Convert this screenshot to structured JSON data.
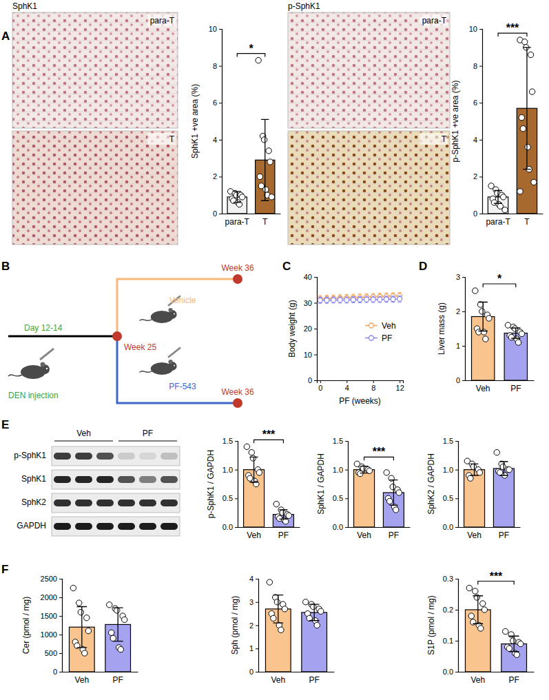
{
  "chart_data": [
    {
      "type": "bar",
      "ylabel": "SphK1 +ve area (%)",
      "categories": [
        "para-T",
        "T"
      ],
      "values": [
        0.9,
        2.9
      ],
      "errors": [
        0.3,
        2.2
      ],
      "points": [
        [
          1.2,
          1.1,
          1.0,
          1.0,
          0.9,
          0.8,
          0.7,
          0.6,
          0.5
        ],
        [
          8.3,
          4.2,
          4.0,
          3.4,
          2.8,
          2.0,
          1.5,
          1.3,
          1.0,
          0.9
        ]
      ],
      "colors": [
        "#f2f2f2",
        "#a8692f"
      ],
      "ylim": [
        0,
        10
      ],
      "yticks": [
        0,
        2,
        4,
        6,
        8,
        10
      ],
      "significance": "*"
    },
    {
      "type": "bar",
      "ylabel": "p-SphK1 +ve area (%)",
      "categories": [
        "para-T",
        "T"
      ],
      "values": [
        0.9,
        5.7
      ],
      "errors": [
        0.35,
        3.3
      ],
      "points": [
        [
          1.5,
          1.3,
          1.1,
          1.0,
          0.9,
          0.8,
          0.6,
          0.5,
          0.4,
          0.2
        ],
        [
          9.4,
          9.3,
          9.0,
          8.6,
          6.6,
          5.2,
          4.6,
          3.6,
          2.4,
          1.7,
          1.2
        ]
      ],
      "colors": [
        "#f2f2f2",
        "#a8692f"
      ],
      "ylim": [
        0,
        10
      ],
      "yticks": [
        0,
        2,
        4,
        6,
        8,
        10
      ],
      "significance": "***"
    },
    {
      "type": "line",
      "xlabel": "PF (weeks)",
      "ylabel": "Body weight (g)",
      "x": [
        0,
        1,
        2,
        3,
        4,
        5,
        6,
        7,
        8,
        9,
        10,
        11,
        12
      ],
      "series": [
        {
          "name": "Veh",
          "color": "#f3a35a",
          "marker": "circle",
          "values": [
            31.5,
            31.6,
            31.7,
            31.8,
            31.9,
            32.0,
            32.1,
            32.2,
            32.3,
            32.4,
            32.5,
            32.6,
            32.7
          ],
          "errors": [
            1.3,
            1.3,
            1.3,
            1.3,
            1.3,
            1.3,
            1.3,
            1.3,
            1.3,
            1.3,
            1.3,
            1.3,
            1.3
          ]
        },
        {
          "name": "PF",
          "color": "#8985ee",
          "marker": "circle",
          "values": [
            31.0,
            31.0,
            31.1,
            31.1,
            31.1,
            31.2,
            31.2,
            31.3,
            31.3,
            31.3,
            31.4,
            31.4,
            31.5
          ],
          "errors": [
            1.2,
            1.2,
            1.2,
            1.2,
            1.2,
            1.2,
            1.2,
            1.2,
            1.2,
            1.2,
            1.2,
            1.2,
            1.2
          ]
        }
      ],
      "xlim": [
        -0.5,
        12.5
      ],
      "xticks": [
        0,
        4,
        8,
        12
      ],
      "ylim": [
        0,
        40
      ],
      "yticks": [
        0,
        10,
        20,
        30,
        40
      ],
      "legend": "right"
    },
    {
      "type": "bar",
      "ylabel": "Liver mass (g)",
      "categories": [
        "Veh",
        "PF"
      ],
      "values": [
        1.85,
        1.37
      ],
      "errors": [
        0.42,
        0.15
      ],
      "points": [
        [
          2.6,
          2.2,
          2.0,
          1.9,
          1.8,
          1.5,
          1.4,
          1.4,
          1.2
        ],
        [
          1.6,
          1.55,
          1.5,
          1.4,
          1.35,
          1.3,
          1.25,
          1.2,
          1.1
        ]
      ],
      "colors": [
        "#fac48e",
        "#a5a2f0"
      ],
      "ylim": [
        0,
        3
      ],
      "yticks": [
        0,
        1,
        2,
        3
      ],
      "significance": "*"
    },
    {
      "type": "bar",
      "ylabel": "p-SphK1 / GAPDH",
      "categories": [
        "Veh",
        "PF"
      ],
      "values": [
        1.0,
        0.22
      ],
      "errors": [
        0.22,
        0.08
      ],
      "points": [
        [
          1.4,
          1.3,
          1.2,
          1.0,
          0.95,
          0.9,
          0.85,
          0.8,
          0.75
        ],
        [
          0.4,
          0.3,
          0.25,
          0.22,
          0.2,
          0.18,
          0.15,
          0.12,
          0.1
        ]
      ],
      "colors": [
        "#fac48e",
        "#a5a2f0"
      ],
      "ylim": [
        0,
        1.5
      ],
      "yticks": [
        {
          "value": 0,
          "label": "0.0"
        },
        {
          "value": 0.5,
          "label": "0.5"
        },
        {
          "value": 1,
          "label": "1.0"
        },
        {
          "value": 1.5,
          "label": "1.5"
        }
      ],
      "significance": "***"
    },
    {
      "type": "bar",
      "ylabel": "SphK1 / GAPDH",
      "categories": [
        "Veh",
        "PF"
      ],
      "values": [
        1.0,
        0.6
      ],
      "errors": [
        0.06,
        0.22
      ],
      "points": [
        [
          1.1,
          1.05,
          1.02,
          1.0,
          0.98,
          0.95,
          0.93
        ],
        [
          0.95,
          0.85,
          0.7,
          0.65,
          0.6,
          0.5,
          0.45,
          0.35,
          0.3
        ]
      ],
      "colors": [
        "#fac48e",
        "#a5a2f0"
      ],
      "ylim": [
        0,
        1.5
      ],
      "yticks": [
        {
          "value": 0,
          "label": "0.0"
        },
        {
          "value": 0.5,
          "label": "0.5"
        },
        {
          "value": 1,
          "label": "1.0"
        },
        {
          "value": 1.5,
          "label": "1.5"
        }
      ],
      "significance": "***"
    },
    {
      "type": "bar",
      "ylabel": "SphK2 / GAPDH",
      "categories": [
        "Veh",
        "PF"
      ],
      "values": [
        1.0,
        1.02
      ],
      "errors": [
        0.1,
        0.12
      ],
      "points": [
        [
          1.15,
          1.1,
          1.05,
          1.0,
          0.95,
          0.9,
          0.85
        ],
        [
          1.3,
          1.1,
          1.05,
          1.0,
          1.0,
          0.97,
          0.95,
          0.9
        ]
      ],
      "colors": [
        "#fac48e",
        "#a5a2f0"
      ],
      "ylim": [
        0,
        1.5
      ],
      "yticks": [
        {
          "value": 0,
          "label": "0.0"
        },
        {
          "value": 0.5,
          "label": "0.5"
        },
        {
          "value": 1,
          "label": "1.0"
        },
        {
          "value": 1.5,
          "label": "1.5"
        }
      ]
    },
    {
      "type": "bar",
      "ylabel": "Cer (pmol / mg)",
      "categories": [
        "Veh",
        "PF"
      ],
      "values": [
        1200,
        1270
      ],
      "errors": [
        550,
        450
      ],
      "points": [
        [
          2250,
          1850,
          1600,
          1450,
          1100,
          800,
          700,
          600,
          500
        ],
        [
          1800,
          1700,
          1650,
          1500,
          1400,
          1050,
          900,
          650,
          600
        ]
      ],
      "colors": [
        "#fac48e",
        "#a5a2f0"
      ],
      "ylim": [
        0,
        2500
      ],
      "yticks": [
        0,
        500,
        1000,
        1500,
        2000,
        2500
      ]
    },
    {
      "type": "bar",
      "ylabel": "Sph (pmol / mg)",
      "categories": [
        "Veh",
        "PF"
      ],
      "values": [
        2.7,
        2.55
      ],
      "errors": [
        0.6,
        0.35
      ],
      "points": [
        [
          3.85,
          3.2,
          3.0,
          2.9,
          2.7,
          2.5,
          2.3,
          2.0,
          1.8
        ],
        [
          3.0,
          2.9,
          2.8,
          2.7,
          2.6,
          2.5,
          2.3,
          2.2,
          2.0
        ]
      ],
      "colors": [
        "#fac48e",
        "#a5a2f0"
      ],
      "ylim": [
        0,
        4
      ],
      "yticks": [
        0,
        1,
        2,
        3,
        4
      ]
    },
    {
      "type": "bar",
      "ylabel": "S1P (pmol / mg)",
      "categories": [
        "Veh",
        "PF"
      ],
      "values": [
        0.2,
        0.09
      ],
      "errors": [
        0.045,
        0.025
      ],
      "points": [
        [
          0.27,
          0.26,
          0.24,
          0.22,
          0.2,
          0.18,
          0.16,
          0.15,
          0.14
        ],
        [
          0.13,
          0.12,
          0.1,
          0.095,
          0.09,
          0.08,
          0.075,
          0.06,
          0.055
        ]
      ],
      "colors": [
        "#fac48e",
        "#a5a2f0"
      ],
      "ylim": [
        0,
        0.3
      ],
      "yticks": [
        {
          "value": 0,
          "label": "0.0"
        },
        {
          "value": 0.1,
          "label": "0.1"
        },
        {
          "value": 0.2,
          "label": "0.2"
        },
        {
          "value": 0.3,
          "label": "0.3"
        }
      ],
      "significance": "***"
    }
  ],
  "panels": [
    "A",
    "B",
    "C",
    "D",
    "E",
    "F"
  ],
  "images": [
    {
      "title": "SphK1",
      "labels": [
        "para-T",
        "T"
      ]
    },
    {
      "title": "p-SphK1",
      "labels": [
        "para-T",
        "T"
      ]
    }
  ],
  "timeline": {
    "start": "Day 12-14",
    "injection": "DEN injection",
    "branch_point": "Week 25",
    "start_color": "#3aa537",
    "point_color": "#c0392b",
    "arms": [
      {
        "label": "Vehicle",
        "end": "Week 36",
        "color": "#f5b77a"
      },
      {
        "label": "PF-543",
        "end": "Week 36",
        "color": "#3f66cc"
      }
    ]
  },
  "blot": {
    "groups": [
      {
        "label": "Veh",
        "lanes": 3
      },
      {
        "label": "PF",
        "lanes": 3
      }
    ],
    "rows": [
      {
        "label": "p-SphK1",
        "intensity": [
          0.8,
          0.8,
          0.7,
          0.15,
          0.1,
          0.2
        ]
      },
      {
        "label": "SphK1",
        "intensity": [
          0.9,
          0.9,
          0.9,
          0.7,
          0.5,
          0.7
        ]
      },
      {
        "label": "SphK2",
        "intensity": [
          0.85,
          0.85,
          0.85,
          0.85,
          0.85,
          0.85
        ]
      },
      {
        "label": "GAPDH",
        "intensity": [
          0.95,
          0.95,
          0.95,
          0.95,
          0.95,
          0.95
        ]
      }
    ]
  }
}
